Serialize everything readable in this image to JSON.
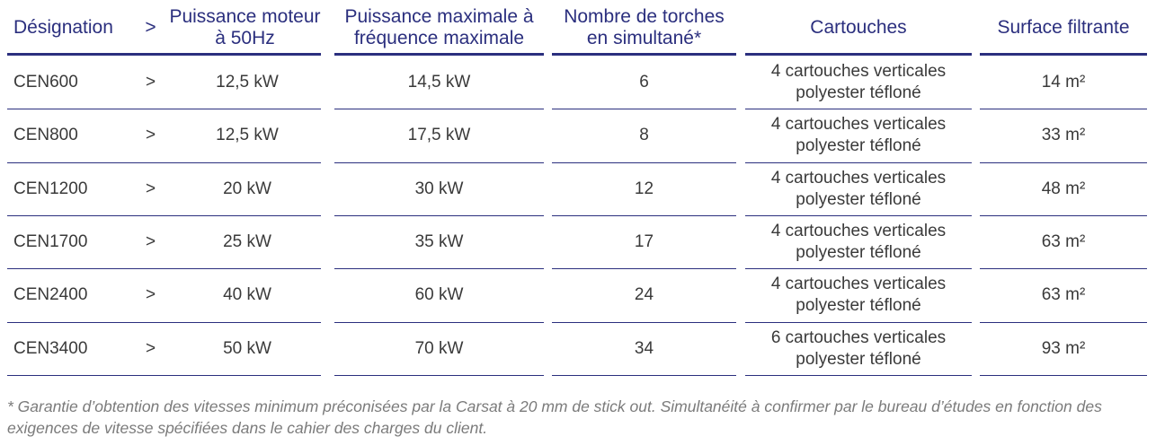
{
  "table": {
    "headers": [
      "Désignation",
      ">",
      "Puissance moteur à 50Hz",
      "Puissance maximale à fréquence maximale",
      "Nombre de torches en simultané*",
      "Cartouches",
      "Surface filtrante"
    ],
    "rows": [
      [
        "CEN600",
        ">",
        "12,5 kW",
        "14,5 kW",
        "6",
        "4 cartouches verticales polyester téfloné",
        "14 m²"
      ],
      [
        "CEN800",
        ">",
        "12,5 kW",
        "17,5 kW",
        "8",
        "4 cartouches verticales polyester téfloné",
        "33 m²"
      ],
      [
        "CEN1200",
        ">",
        "20 kW",
        "30 kW",
        "12",
        "4 cartouches verticales polyester téfloné",
        "48 m²"
      ],
      [
        "CEN1700",
        ">",
        "25 kW",
        "35 kW",
        "17",
        "4 cartouches verticales polyester téfloné",
        "63 m²"
      ],
      [
        "CEN2400",
        ">",
        "40 kW",
        "60 kW",
        "24",
        "4 cartouches verticales polyester téfloné",
        "63 m²"
      ],
      [
        "CEN3400",
        ">",
        "50 kW",
        "70 kW",
        "34",
        "6 cartouches verticales polyester téfloné",
        "93 m²"
      ]
    ]
  },
  "footnote": "* Garantie d’obtention des vitesses minimum préconisées par la Carsat à 20 mm de stick out. Simultanéité à confirmer par le bureau d’études en fonction des exigences de vitesse spécifiées dans le cahier des charges du client.",
  "colors": {
    "header": "#2b2f7e",
    "lines": "#2b2f7e",
    "text": "#3a3a3a",
    "note": "#7b7b7b"
  }
}
